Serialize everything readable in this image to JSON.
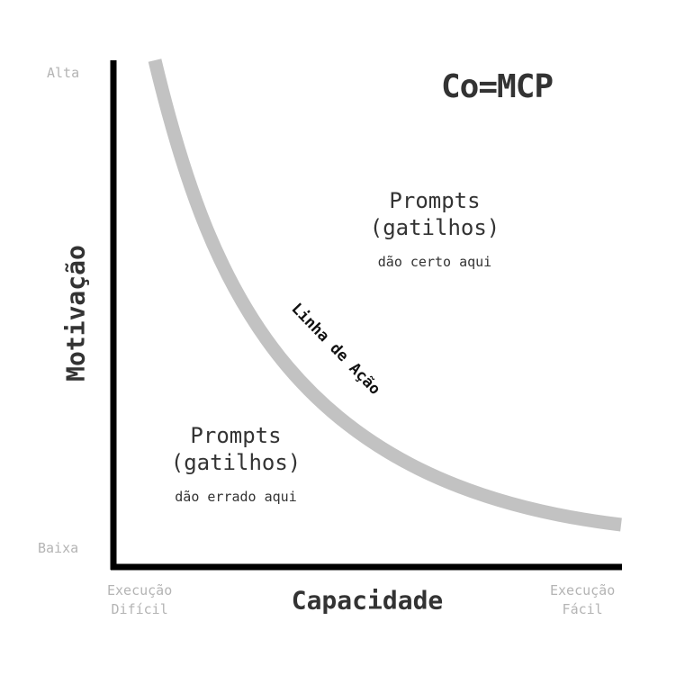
{
  "title": "Co=MCP",
  "axes": {
    "y_label": "Motivação",
    "y_high": "Alta",
    "y_low": "Baixa",
    "x_label": "Capacidade",
    "x_low_line1": "Execução",
    "x_low_line2": "Difícil",
    "x_high_line1": "Execução",
    "x_high_line2": "Fácil"
  },
  "curve": {
    "label": "Linha de Ação",
    "color": "#c2c2c2",
    "axis_color": "#000000"
  },
  "regions": {
    "above": {
      "line1": "Prompts",
      "line2": "(gatilhos)",
      "note": "dão certo aqui"
    },
    "below": {
      "line1": "Prompts",
      "line2": "(gatilhos)",
      "note": "dão errado aqui"
    }
  }
}
